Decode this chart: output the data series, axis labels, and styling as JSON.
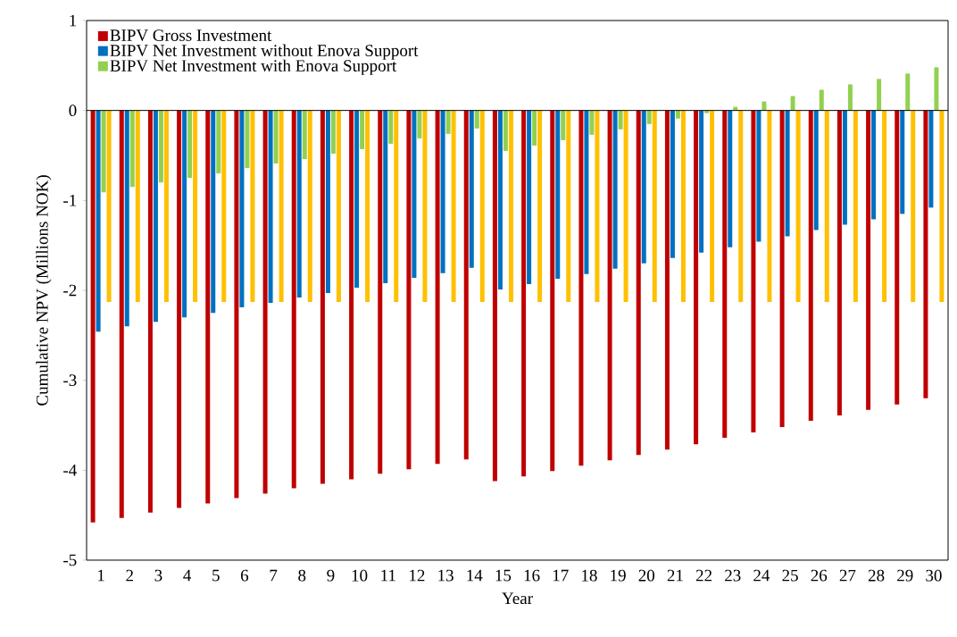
{
  "chart_data": {
    "type": "bar",
    "xlabel": "Year",
    "ylabel": "Cumulative NPV (Millions NOK)",
    "categories": [
      "1",
      "2",
      "3",
      "4",
      "5",
      "6",
      "7",
      "8",
      "9",
      "10",
      "11",
      "12",
      "13",
      "14",
      "15",
      "16",
      "17",
      "18",
      "19",
      "20",
      "21",
      "22",
      "23",
      "24",
      "25",
      "26",
      "27",
      "28",
      "29",
      "30"
    ],
    "series": [
      {
        "name": "BIPV Gross Investment",
        "color": "#c00000",
        "values": [
          -4.58,
          -4.53,
          -4.47,
          -4.42,
          -4.37,
          -4.31,
          -4.26,
          -4.2,
          -4.15,
          -4.1,
          -4.04,
          -3.99,
          -3.93,
          -3.88,
          -4.12,
          -4.07,
          -4.01,
          -3.95,
          -3.89,
          -3.83,
          -3.77,
          -3.71,
          -3.64,
          -3.58,
          -3.52,
          -3.45,
          -3.39,
          -3.33,
          -3.27,
          -3.2
        ]
      },
      {
        "name": "BIPV Net Investment without Enova Support",
        "color": "#0070c0",
        "values": [
          -2.46,
          -2.4,
          -2.35,
          -2.3,
          -2.25,
          -2.19,
          -2.14,
          -2.08,
          -2.03,
          -1.97,
          -1.92,
          -1.86,
          -1.81,
          -1.75,
          -1.99,
          -1.93,
          -1.87,
          -1.82,
          -1.76,
          -1.7,
          -1.64,
          -1.58,
          -1.52,
          -1.46,
          -1.4,
          -1.33,
          -1.27,
          -1.21,
          -1.15,
          -1.08
        ]
      },
      {
        "name": "BIPV Net Investment with Enova Support",
        "color": "#92d050",
        "values": [
          -0.91,
          -0.85,
          -0.8,
          -0.75,
          -0.7,
          -0.64,
          -0.59,
          -0.54,
          -0.48,
          -0.43,
          -0.37,
          -0.31,
          -0.26,
          -0.2,
          -0.45,
          -0.39,
          -0.33,
          -0.27,
          -0.21,
          -0.15,
          -0.09,
          -0.03,
          0.04,
          0.1,
          0.16,
          0.23,
          0.29,
          0.35,
          0.41,
          0.48
        ]
      },
      {
        "color": "#ffc000",
        "values": [
          -2.13,
          -2.13,
          -2.13,
          -2.13,
          -2.13,
          -2.13,
          -2.13,
          -2.13,
          -2.13,
          -2.13,
          -2.13,
          -2.13,
          -2.13,
          -2.13,
          -2.13,
          -2.13,
          -2.13,
          -2.13,
          -2.13,
          -2.13,
          -2.13,
          -2.13,
          -2.13,
          -2.13,
          -2.13,
          -2.13,
          -2.13,
          -2.13,
          -2.13,
          -2.13
        ]
      }
    ],
    "ylim": [
      -5,
      1
    ],
    "yticks": [
      1,
      0,
      -1,
      -2,
      -3,
      -4,
      -5
    ],
    "legend": "top left"
  }
}
